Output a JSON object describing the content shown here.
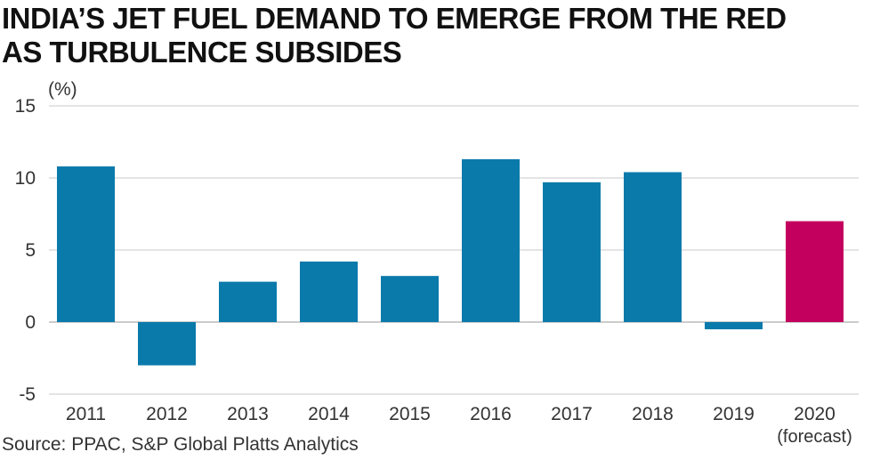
{
  "title_line1": "INDIA’S JET FUEL DEMAND TO EMERGE FROM THE RED",
  "title_line2": "AS TURBULENCE SUBSIDES",
  "source": "Source: PPAC, S&P Global Platts Analytics",
  "colors": {
    "bar": "#0a7aab",
    "forecast_bar": "#c4005f",
    "grid": "#c8c8c8"
  },
  "chart_data": {
    "type": "bar",
    "title": "INDIA’S JET FUEL DEMAND TO EMERGE FROM THE RED AS TURBULENCE SUBSIDES",
    "xlabel": "",
    "ylabel": "(%)",
    "ylim": [
      -5,
      15
    ],
    "yticks": [
      -5,
      0,
      5,
      10,
      15
    ],
    "categories": [
      "2011",
      "2012",
      "2013",
      "2014",
      "2015",
      "2016",
      "2017",
      "2018",
      "2019",
      "2020"
    ],
    "category_sublabels": [
      "",
      "",
      "",
      "",
      "",
      "",
      "",
      "",
      "",
      "(forecast)"
    ],
    "values": [
      10.8,
      -3.0,
      2.8,
      4.2,
      3.2,
      11.3,
      9.7,
      10.4,
      -0.5,
      7.0
    ],
    "forecast": [
      false,
      false,
      false,
      false,
      false,
      false,
      false,
      false,
      false,
      true
    ],
    "grid": true
  }
}
